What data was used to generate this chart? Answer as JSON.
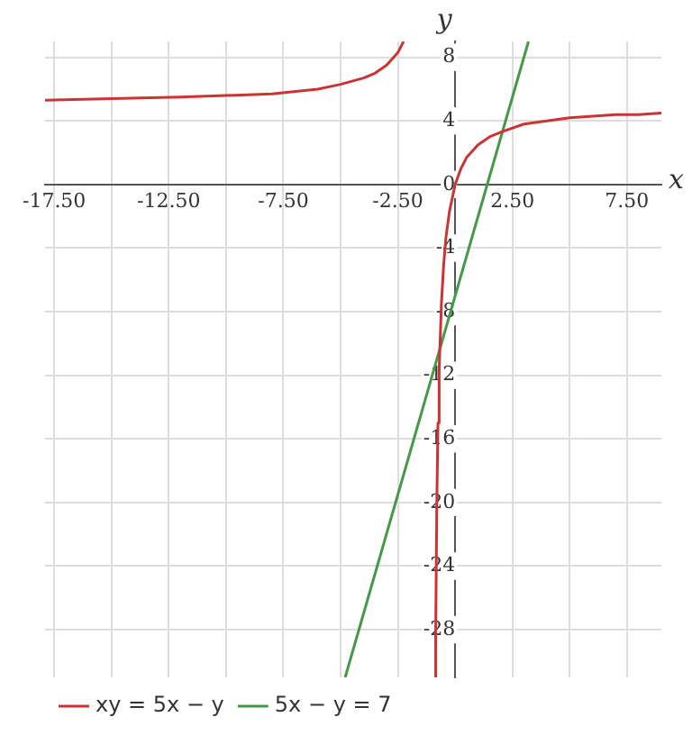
{
  "chart_data": {
    "type": "line",
    "xlabel": "x",
    "ylabel": "y",
    "xlim": [
      -17.9,
      9
    ],
    "ylim": [
      -31,
      9
    ],
    "xticks": [
      {
        "value": -17.5,
        "label": "-17.50"
      },
      {
        "value": -15,
        "label": null
      },
      {
        "value": -12.5,
        "label": "-12.50"
      },
      {
        "value": -10,
        "label": null
      },
      {
        "value": -7.5,
        "label": "-7.50"
      },
      {
        "value": -5,
        "label": null
      },
      {
        "value": -2.5,
        "label": "-2.50"
      },
      {
        "value": 0,
        "label": null
      },
      {
        "value": 2.5,
        "label": "2.50"
      },
      {
        "value": 5,
        "label": null
      },
      {
        "value": 7.5,
        "label": "7.50"
      }
    ],
    "yticks": [
      -28,
      -24,
      -20,
      -16,
      -12,
      -8,
      -4,
      0,
      4,
      8
    ],
    "series": [
      {
        "name": "xy = 5x − y",
        "color": "#cc3333",
        "x": [
          -17.9,
          -15,
          -12,
          -10,
          -8,
          -6,
          -5,
          -4,
          -3.5,
          -3,
          -2.75,
          -2.5,
          -2.25,
          -1,
          -0.86,
          -0.85,
          -0.8,
          -0.75,
          -0.7,
          -0.6,
          -0.5,
          -0.4,
          -0.25,
          0,
          0.25,
          0.5,
          1,
          1.5,
          2,
          3,
          4,
          5,
          6,
          7,
          8,
          9
        ],
        "values": [
          5.3,
          5.4,
          5.5,
          5.6,
          5.7,
          6,
          6.3,
          6.7,
          7,
          7.5,
          7.9,
          8.3,
          9,
          null,
          -31,
          -28.3,
          -20,
          -15,
          -11.7,
          -7.5,
          -5,
          -3.3,
          -1.7,
          0,
          1,
          1.7,
          2.5,
          3,
          3.3,
          3.8,
          4,
          4.2,
          4.3,
          4.4,
          4.4,
          4.5
        ]
      },
      {
        "name": "5x − y = 7",
        "color": "#449944",
        "x": [
          -4.8,
          3.2
        ],
        "values": [
          -31,
          9
        ]
      }
    ],
    "grid": true,
    "legend": "bottom left",
    "marker": "none",
    "line_style": "solid"
  }
}
